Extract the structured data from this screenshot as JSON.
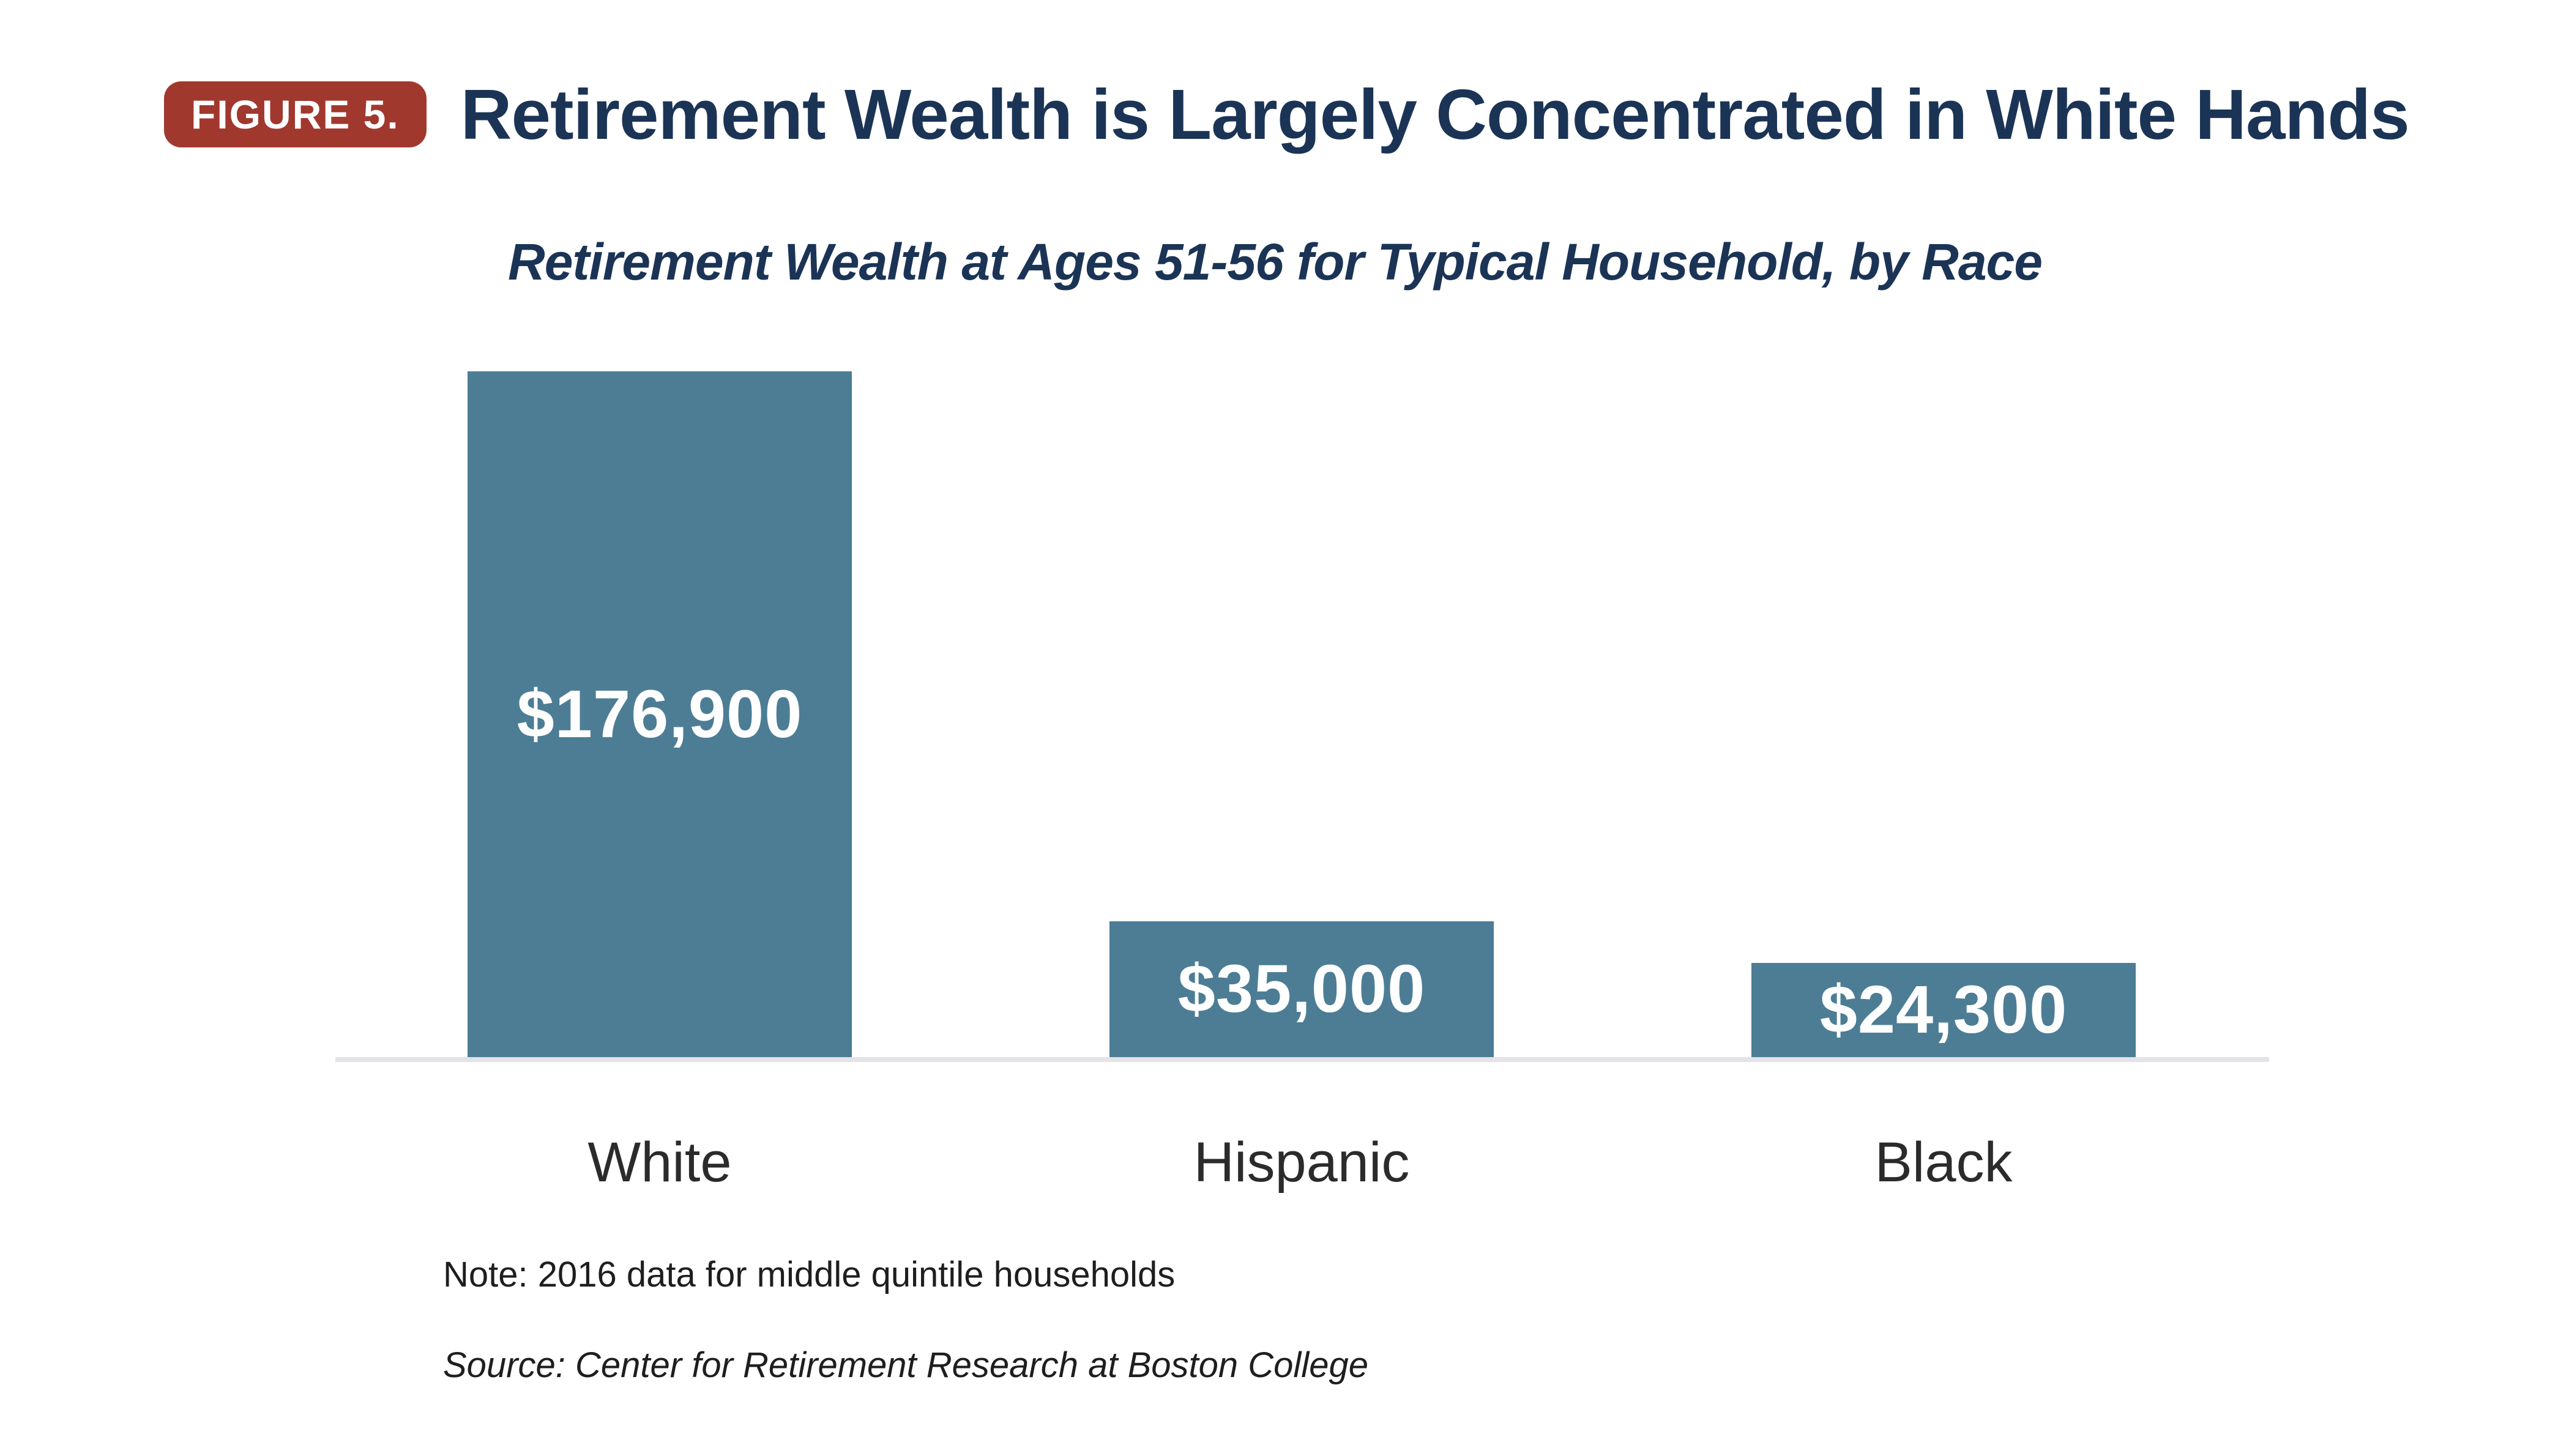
{
  "figure": {
    "badge": "FIGURE 5.",
    "title": "Retirement Wealth is Largely Concentrated in White Hands",
    "subtitle": "Retirement Wealth at Ages 51-56 for Typical Household, by Race",
    "note": "Note: 2016 data for middle quintile households",
    "source": "Source: Center for Retirement Research at Boston College"
  },
  "chart_data": {
    "type": "bar",
    "categories": [
      "White",
      "Hispanic",
      "Black"
    ],
    "values": [
      176900,
      35000,
      24300
    ],
    "value_labels": [
      "$176,900",
      "$35,000",
      "$24,300"
    ],
    "title": "Retirement Wealth at Ages 51-56 for Typical Household, by Race",
    "xlabel": "",
    "ylabel": "",
    "ylim": [
      0,
      190000
    ],
    "grid": false,
    "legend": false,
    "bar_color": "#4C7D95",
    "value_label_color": "#FFFFFF",
    "value_label_position": "inside-center"
  },
  "colors": {
    "badge_bg": "#A1382E",
    "badge_text": "#FFFFFF",
    "title": "#1B3456",
    "subtitle": "#1B3456",
    "bar": "#4C7D95",
    "bar_label": "#FFFFFF",
    "category_label": "#2B2B2B",
    "note_text": "#1E1E1E",
    "axis_line": "#E3E3E8",
    "background": "#FFFFFF"
  }
}
